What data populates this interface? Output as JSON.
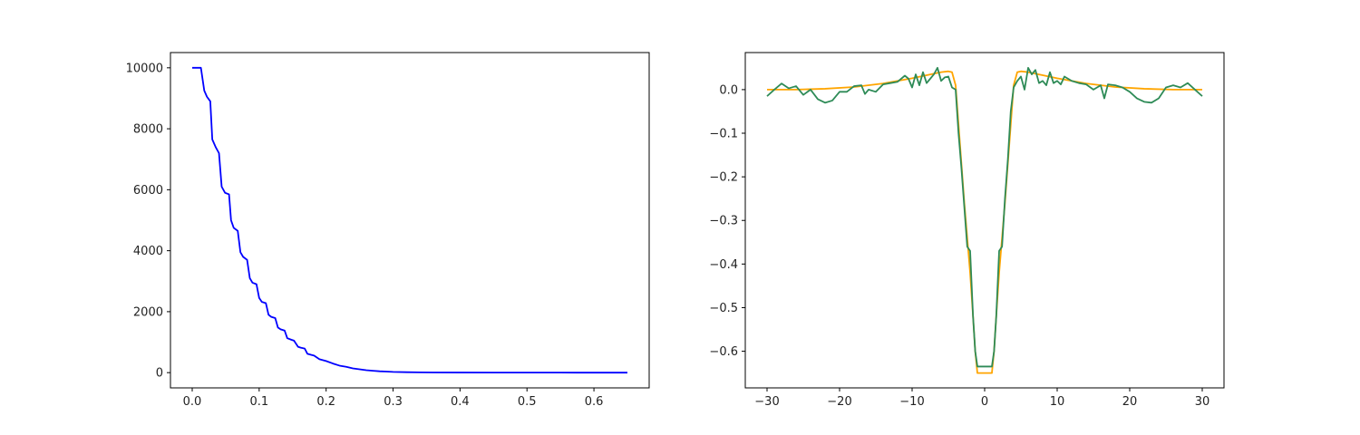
{
  "chart_data": [
    {
      "type": "line",
      "title": "",
      "xlabel": "",
      "ylabel": "",
      "xlim": [
        -0.0325,
        0.6825
      ],
      "ylim": [
        -500,
        10500
      ],
      "xticks": [
        "0.0",
        "0.1",
        "0.2",
        "0.3",
        "0.4",
        "0.5",
        "0.6"
      ],
      "xtick_values": [
        0.0,
        0.1,
        0.2,
        0.3,
        0.4,
        0.5,
        0.6
      ],
      "yticks": [
        "0",
        "2000",
        "4000",
        "6000",
        "8000",
        "10000"
      ],
      "ytick_values": [
        0,
        2000,
        4000,
        6000,
        8000,
        10000
      ],
      "grid": false,
      "series": [
        {
          "color": "#0000ff",
          "x": [
            0.0,
            0.013,
            0.018,
            0.022,
            0.027,
            0.03,
            0.035,
            0.04,
            0.044,
            0.049,
            0.055,
            0.058,
            0.062,
            0.068,
            0.072,
            0.076,
            0.082,
            0.086,
            0.09,
            0.096,
            0.1,
            0.104,
            0.11,
            0.114,
            0.118,
            0.124,
            0.128,
            0.132,
            0.138,
            0.142,
            0.148,
            0.152,
            0.158,
            0.162,
            0.168,
            0.172,
            0.178,
            0.182,
            0.19,
            0.195,
            0.2,
            0.21,
            0.22,
            0.23,
            0.24,
            0.25,
            0.26,
            0.27,
            0.28,
            0.29,
            0.3,
            0.32,
            0.34,
            0.36,
            0.4,
            0.45,
            0.5,
            0.55,
            0.6,
            0.65
          ],
          "y": [
            10000,
            10000,
            9250,
            9050,
            8900,
            7650,
            7400,
            7200,
            6100,
            5900,
            5850,
            5000,
            4750,
            4650,
            3950,
            3800,
            3700,
            3100,
            2950,
            2900,
            2450,
            2320,
            2280,
            1900,
            1830,
            1790,
            1480,
            1420,
            1380,
            1130,
            1080,
            1050,
            850,
            820,
            790,
            620,
            580,
            560,
            440,
            410,
            380,
            300,
            230,
            190,
            140,
            110,
            80,
            60,
            45,
            35,
            25,
            15,
            8,
            5,
            3,
            2,
            1,
            1,
            0,
            0
          ]
        }
      ]
    },
    {
      "type": "line",
      "title": "",
      "xlabel": "",
      "ylabel": "",
      "xlim": [
        -33,
        33
      ],
      "ylim": [
        -0.684,
        0.085
      ],
      "xticks": [
        "−30",
        "−20",
        "−10",
        "0",
        "10",
        "20",
        "30"
      ],
      "xtick_values": [
        -30,
        -20,
        -10,
        0,
        10,
        20,
        30
      ],
      "yticks": [
        "0.0",
        "−0.1",
        "−0.2",
        "−0.3",
        "−0.4",
        "−0.5",
        "−0.6"
      ],
      "ytick_values": [
        0.0,
        -0.1,
        -0.2,
        -0.3,
        -0.4,
        -0.5,
        -0.6
      ],
      "grid": false,
      "series": [
        {
          "color": "#ffa500",
          "x": [
            -30,
            -26,
            -22,
            -18,
            -14,
            -10,
            -8,
            -6,
            -5,
            -4.5,
            -4,
            -3.6,
            -3.2,
            -2.8,
            -2.4,
            -2,
            -1.6,
            -1.3,
            -1,
            1,
            1.3,
            1.6,
            2,
            2.4,
            2.8,
            3.2,
            3.6,
            4,
            4.5,
            5,
            6,
            8,
            10,
            14,
            18,
            22,
            26,
            30
          ],
          "y": [
            0.0,
            0.0,
            0.002,
            0.006,
            0.014,
            0.026,
            0.033,
            0.04,
            0.042,
            0.04,
            0.01,
            -0.08,
            -0.17,
            -0.26,
            -0.34,
            -0.42,
            -0.52,
            -0.6,
            -0.65,
            -0.65,
            -0.6,
            -0.52,
            -0.42,
            -0.34,
            -0.26,
            -0.17,
            -0.08,
            0.01,
            0.04,
            0.042,
            0.04,
            0.033,
            0.026,
            0.014,
            0.006,
            0.002,
            0.0,
            0.0
          ]
        },
        {
          "color": "#2e8b57",
          "x": [
            -30,
            -29,
            -28,
            -27,
            -26,
            -25,
            -24,
            -23,
            -22,
            -21,
            -20,
            -19,
            -18,
            -17,
            -16.5,
            -16,
            -15,
            -14,
            -13,
            -12,
            -11,
            -10.5,
            -10,
            -9.5,
            -9,
            -8.5,
            -8,
            -7.5,
            -7,
            -6.5,
            -6,
            -5.5,
            -5,
            -4.5,
            -4,
            -3.6,
            -3.2,
            -2.8,
            -2.4,
            -2,
            -1.6,
            -1.3,
            -1,
            1,
            1.3,
            1.6,
            2,
            2.4,
            2.8,
            3.2,
            3.6,
            4,
            4.5,
            5,
            5.5,
            6,
            6.5,
            7,
            7.5,
            8,
            8.5,
            9,
            9.5,
            10,
            10.5,
            11,
            12,
            13,
            14,
            15,
            16,
            16.5,
            17,
            18,
            19,
            20,
            21,
            22,
            23,
            24,
            25,
            26,
            27,
            28,
            29,
            30
          ],
          "y": [
            -0.015,
            0.0,
            0.014,
            0.003,
            0.008,
            -0.012,
            0.0,
            -0.022,
            -0.03,
            -0.025,
            -0.005,
            -0.005,
            0.008,
            0.01,
            -0.01,
            0.0,
            -0.005,
            0.012,
            0.015,
            0.018,
            0.032,
            0.025,
            0.005,
            0.035,
            0.01,
            0.04,
            0.015,
            0.025,
            0.035,
            0.05,
            0.02,
            0.028,
            0.03,
            0.005,
            0.0,
            -0.1,
            -0.18,
            -0.27,
            -0.36,
            -0.37,
            -0.52,
            -0.6,
            -0.635,
            -0.635,
            -0.6,
            -0.52,
            -0.37,
            -0.36,
            -0.25,
            -0.16,
            -0.05,
            0.005,
            0.02,
            0.03,
            0.0,
            0.05,
            0.035,
            0.045,
            0.015,
            0.02,
            0.01,
            0.04,
            0.015,
            0.02,
            0.012,
            0.03,
            0.02,
            0.015,
            0.012,
            0.0,
            0.01,
            -0.02,
            0.012,
            0.01,
            0.005,
            -0.005,
            -0.02,
            -0.028,
            -0.03,
            -0.02,
            0.005,
            0.01,
            0.005,
            0.015,
            0.0,
            -0.015
          ]
        }
      ]
    }
  ]
}
